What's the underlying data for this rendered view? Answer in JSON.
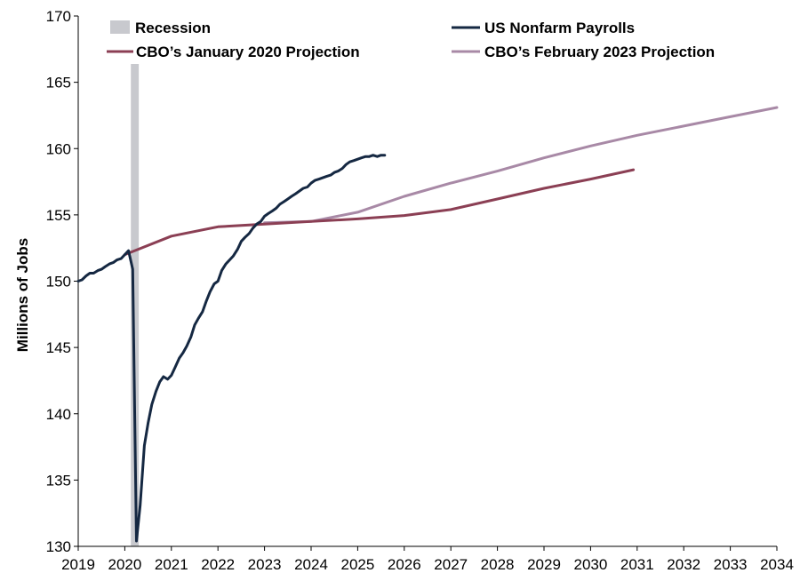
{
  "chart_data": {
    "type": "line",
    "ylabel": "Millions of Jobs",
    "xlim": [
      2019,
      2034
    ],
    "ylim": [
      130,
      170
    ],
    "x_ticks": [
      "2019",
      "2020",
      "2021",
      "2022",
      "2023",
      "2024",
      "2025",
      "2026",
      "2027",
      "2028",
      "2029",
      "2030",
      "2031",
      "2032",
      "2033",
      "2034"
    ],
    "y_ticks": [
      "130",
      "135",
      "140",
      "145",
      "150",
      "155",
      "160",
      "165",
      "170"
    ],
    "grid": false,
    "legend_position": "top",
    "recession": {
      "name": "Recession",
      "start": 2020.13,
      "end": 2020.3,
      "color": "#c8c9ce"
    },
    "series": [
      {
        "name": "US Nonfarm Payrolls",
        "color": "#152842",
        "x": [
          2019.0,
          2019.08,
          2019.17,
          2019.25,
          2019.33,
          2019.42,
          2019.5,
          2019.58,
          2019.67,
          2019.75,
          2019.83,
          2019.92,
          2020.0,
          2020.08,
          2020.17,
          2020.25,
          2020.33,
          2020.42,
          2020.5,
          2020.58,
          2020.67,
          2020.75,
          2020.83,
          2020.92,
          2021.0,
          2021.08,
          2021.17,
          2021.25,
          2021.33,
          2021.42,
          2021.5,
          2021.58,
          2021.67,
          2021.75,
          2021.83,
          2021.92,
          2022.0,
          2022.08,
          2022.17,
          2022.25,
          2022.33,
          2022.42,
          2022.5,
          2022.58,
          2022.67,
          2022.75,
          2022.83,
          2022.92,
          2023.0,
          2023.08,
          2023.17,
          2023.25,
          2023.33,
          2023.42,
          2023.5,
          2023.58,
          2023.67,
          2023.75,
          2023.83,
          2023.92,
          2024.0,
          2024.08,
          2024.17,
          2024.25,
          2024.33,
          2024.42,
          2024.5,
          2024.58,
          2024.67,
          2024.75,
          2024.83,
          2024.92,
          2025.0,
          2025.08,
          2025.17,
          2025.25,
          2025.33,
          2025.42,
          2025.5,
          2025.58
        ],
        "values": [
          150.0,
          150.1,
          150.4,
          150.6,
          150.6,
          150.8,
          150.9,
          151.1,
          151.3,
          151.4,
          151.6,
          151.7,
          152.0,
          152.3,
          150.9,
          130.4,
          133.1,
          137.6,
          139.3,
          140.7,
          141.7,
          142.4,
          142.8,
          142.6,
          142.9,
          143.5,
          144.2,
          144.6,
          145.1,
          145.8,
          146.7,
          147.2,
          147.7,
          148.5,
          149.2,
          149.8,
          150.0,
          150.8,
          151.3,
          151.6,
          151.9,
          152.4,
          153.0,
          153.3,
          153.6,
          154.0,
          154.3,
          154.5,
          154.9,
          155.1,
          155.3,
          155.5,
          155.8,
          156.0,
          156.2,
          156.4,
          156.6,
          156.8,
          157.0,
          157.1,
          157.4,
          157.6,
          157.7,
          157.8,
          157.9,
          158.0,
          158.2,
          158.3,
          158.5,
          158.8,
          159.0,
          159.1,
          159.2,
          159.3,
          159.4,
          159.4,
          159.5,
          159.4,
          159.5,
          159.5
        ]
      },
      {
        "name": "CBO’s January 2020 Projection",
        "color": "#8b3f54",
        "x": [
          2020.0,
          2021.0,
          2022.0,
          2023.0,
          2024.0,
          2025.0,
          2026.0,
          2027.0,
          2028.0,
          2029.0,
          2030.0,
          2030.92
        ],
        "values": [
          152.0,
          153.4,
          154.1,
          154.3,
          154.5,
          154.7,
          154.95,
          155.4,
          156.2,
          157.0,
          157.7,
          158.4
        ]
      },
      {
        "name": "CBO’s February 2023 Projection",
        "color": "#a889a6",
        "x": [
          2023.0,
          2024.0,
          2025.0,
          2026.0,
          2027.0,
          2028.0,
          2029.0,
          2030.0,
          2031.0,
          2032.0,
          2033.0,
          2034.0
        ],
        "values": [
          154.4,
          154.5,
          155.2,
          156.4,
          157.4,
          158.3,
          159.3,
          160.2,
          161.0,
          161.7,
          162.4,
          163.1
        ]
      }
    ]
  }
}
